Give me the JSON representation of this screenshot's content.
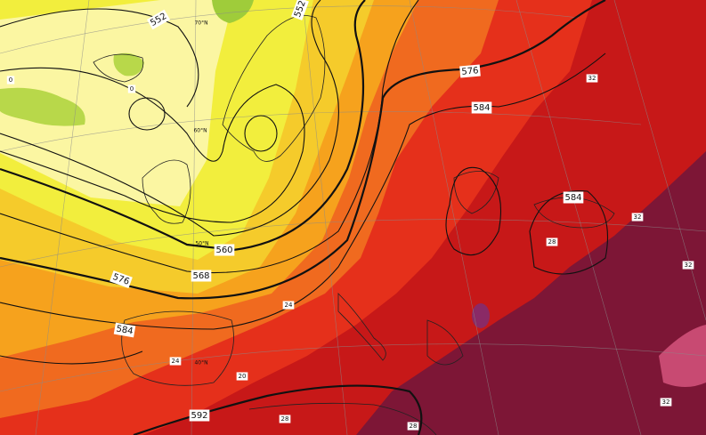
{
  "contour_labels": [
    "552",
    "552",
    "560",
    "568",
    "576",
    "576",
    "584",
    "584",
    "584",
    "592"
  ],
  "latitude_labels": [
    "70°N",
    "60°N",
    "50°N",
    "40°N"
  ],
  "temperature_labels": [
    "0",
    "0",
    "32",
    "28",
    "32",
    "32",
    "24",
    "20",
    "28",
    "32",
    "24",
    "28"
  ]
}
